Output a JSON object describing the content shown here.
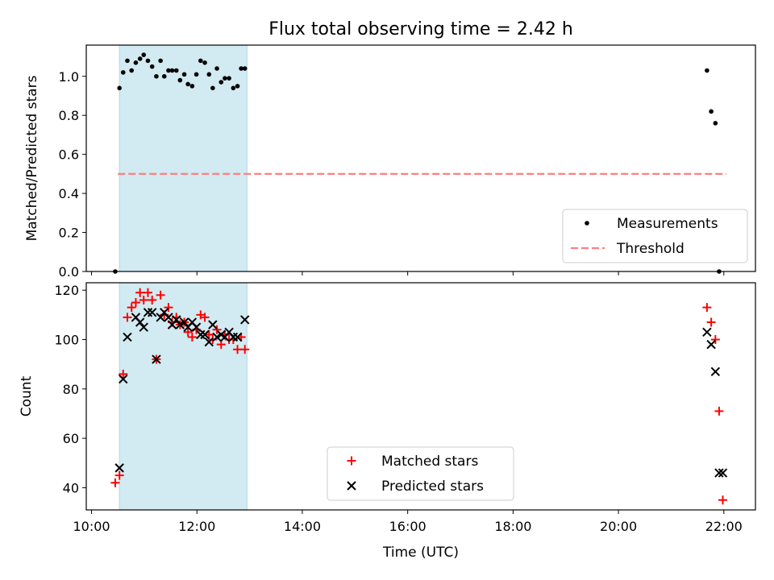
{
  "title": "Flux total observing time = 2.42 h",
  "colors": {
    "band": "#add8e6",
    "measurement": "#000000",
    "threshold": "#ff7f7f",
    "matched": "#ff0000",
    "predicted": "#000000"
  },
  "chart_data": [
    {
      "type": "scatter",
      "ylabel": "Matched/Predicted stars",
      "xlim": [
        9.9,
        22.6
      ],
      "ylim": [
        0,
        1.16
      ],
      "yticks": [
        0.0,
        0.2,
        0.4,
        0.6,
        0.8,
        1.0
      ],
      "ytick_labels": [
        "0.0",
        "0.2",
        "0.4",
        "0.6",
        "0.8",
        "1.0"
      ],
      "xtick_values": [
        10,
        12,
        14,
        16,
        18,
        20,
        22
      ],
      "shaded_interval": [
        10.53,
        12.95
      ],
      "legend_position": "lower-right",
      "legend": [
        "Measurements",
        "Threshold"
      ],
      "threshold": {
        "name": "Threshold",
        "y": 0.5,
        "x_range": [
          10.5,
          22.05
        ]
      },
      "series": [
        {
          "name": "Measurements",
          "x": [
            10.45,
            10.53,
            10.6,
            10.68,
            10.76,
            10.84,
            10.92,
            10.99,
            11.07,
            11.15,
            11.23,
            11.31,
            11.38,
            11.46,
            11.53,
            11.61,
            11.68,
            11.76,
            11.83,
            11.91,
            11.99,
            12.07,
            12.15,
            12.23,
            12.3,
            12.38,
            12.46,
            12.53,
            12.61,
            12.69,
            12.77,
            12.84,
            12.91,
            21.68,
            21.76,
            21.84,
            21.91,
            21.98
          ],
          "y": [
            0.0,
            0.94,
            1.02,
            1.08,
            1.03,
            1.07,
            1.09,
            1.11,
            1.08,
            1.05,
            1.0,
            1.08,
            1.0,
            1.03,
            1.03,
            1.03,
            0.98,
            1.01,
            0.96,
            0.95,
            1.01,
            1.08,
            1.07,
            1.01,
            0.94,
            1.04,
            0.97,
            0.99,
            0.99,
            0.94,
            0.95,
            1.04,
            1.04,
            1.03,
            0.82,
            0.76,
            0.0,
            0.0
          ],
          "x_visible_count": 37
        }
      ]
    },
    {
      "type": "scatter",
      "ylabel": "Count",
      "xlabel": "Time (UTC)",
      "xlim": [
        9.9,
        22.6
      ],
      "ylim": [
        31,
        123
      ],
      "yticks": [
        40,
        60,
        80,
        100,
        120
      ],
      "ytick_labels": [
        "40",
        "60",
        "80",
        "100",
        "120"
      ],
      "xtick_values": [
        10,
        12,
        14,
        16,
        18,
        20,
        22
      ],
      "xtick_labels": [
        "10:00",
        "12:00",
        "14:00",
        "16:00",
        "18:00",
        "20:00",
        "22:00"
      ],
      "shaded_interval": [
        10.53,
        12.95
      ],
      "legend_position": "lower-center",
      "legend": [
        "Matched stars",
        "Predicted stars"
      ],
      "series": [
        {
          "name": "Matched stars",
          "x": [
            10.45,
            10.53,
            10.6,
            10.68,
            10.76,
            10.84,
            10.92,
            10.99,
            11.07,
            11.15,
            11.23,
            11.31,
            11.38,
            11.46,
            11.53,
            11.61,
            11.68,
            11.76,
            11.83,
            11.91,
            11.99,
            12.07,
            12.15,
            12.23,
            12.3,
            12.38,
            12.46,
            12.53,
            12.61,
            12.69,
            12.77,
            12.84,
            12.91,
            21.68,
            21.76,
            21.84,
            21.91,
            21.98
          ],
          "y": [
            42,
            45,
            86,
            109,
            113,
            115,
            119,
            116,
            119,
            116,
            92,
            118,
            110,
            113,
            107,
            109,
            106,
            107,
            103,
            101,
            104,
            110,
            109,
            102,
            100,
            104,
            98,
            102,
            100,
            100,
            96,
            101,
            96,
            113,
            107,
            100,
            71,
            35
          ]
        },
        {
          "name": "Predicted stars",
          "x": [
            10.53,
            10.6,
            10.68,
            10.84,
            10.92,
            10.99,
            11.07,
            11.15,
            11.23,
            11.31,
            11.38,
            11.46,
            11.53,
            11.61,
            11.68,
            11.76,
            11.83,
            11.91,
            11.99,
            12.07,
            12.15,
            12.23,
            12.3,
            12.38,
            12.46,
            12.53,
            12.61,
            12.69,
            12.77,
            12.91,
            21.68,
            21.76,
            21.84,
            21.91,
            21.98
          ],
          "y": [
            48,
            84,
            101,
            109,
            107,
            105,
            111,
            111,
            92,
            109,
            111,
            109,
            106,
            108,
            106,
            107,
            105,
            107,
            105,
            102,
            102,
            99,
            106,
            101,
            102,
            101,
            103,
            101,
            101,
            108,
            103,
            98,
            87,
            46,
            46
          ]
        }
      ]
    }
  ]
}
